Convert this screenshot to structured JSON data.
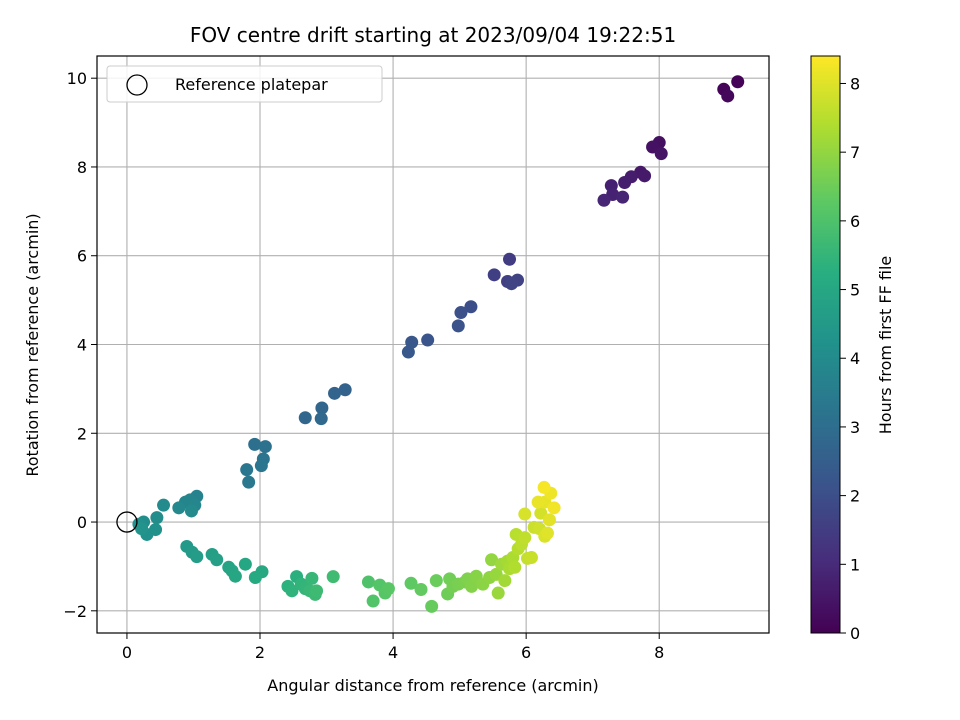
{
  "chart_data": {
    "type": "scatter",
    "title": "FOV centre drift starting at 2023/09/04 19:22:51",
    "xlabel": "Angular distance from reference (arcmin)",
    "ylabel": "Rotation from reference (arcmin)",
    "xlim": [
      -0.45,
      9.65
    ],
    "ylim": [
      -2.5,
      10.5
    ],
    "xticks": [
      0,
      2,
      4,
      6,
      8
    ],
    "yticks": [
      -2,
      0,
      2,
      4,
      6,
      8,
      10
    ],
    "grid": true,
    "legend": {
      "placement": "upper-left",
      "entries": [
        "Reference platepar"
      ]
    },
    "reference_point": {
      "x": 0,
      "y": 0
    },
    "colorbar": {
      "label": "Hours from first FF file",
      "colormap": "viridis",
      "range": [
        0,
        8.4
      ],
      "ticks": [
        0,
        1,
        2,
        3,
        4,
        5,
        6,
        7,
        8
      ]
    },
    "points": [
      {
        "x": 9.18,
        "y": 9.92,
        "c": 0.05
      },
      {
        "x": 8.97,
        "y": 9.75,
        "c": 0.1
      },
      {
        "x": 9.03,
        "y": 9.6,
        "c": 0.15
      },
      {
        "x": 8.0,
        "y": 8.55,
        "c": 0.35
      },
      {
        "x": 7.9,
        "y": 8.45,
        "c": 0.4
      },
      {
        "x": 8.03,
        "y": 8.3,
        "c": 0.45
      },
      {
        "x": 7.72,
        "y": 7.88,
        "c": 0.55
      },
      {
        "x": 7.78,
        "y": 7.8,
        "c": 0.6
      },
      {
        "x": 7.58,
        "y": 7.78,
        "c": 0.65
      },
      {
        "x": 7.48,
        "y": 7.65,
        "c": 0.7
      },
      {
        "x": 7.28,
        "y": 7.58,
        "c": 0.75
      },
      {
        "x": 7.3,
        "y": 7.38,
        "c": 0.8
      },
      {
        "x": 7.45,
        "y": 7.32,
        "c": 0.85
      },
      {
        "x": 7.17,
        "y": 7.25,
        "c": 0.9
      },
      {
        "x": 5.75,
        "y": 5.92,
        "c": 1.5
      },
      {
        "x": 5.52,
        "y": 5.57,
        "c": 1.55
      },
      {
        "x": 5.72,
        "y": 5.42,
        "c": 1.6
      },
      {
        "x": 5.87,
        "y": 5.45,
        "c": 1.65
      },
      {
        "x": 5.78,
        "y": 5.37,
        "c": 1.7
      },
      {
        "x": 5.17,
        "y": 4.85,
        "c": 2.0
      },
      {
        "x": 5.02,
        "y": 4.72,
        "c": 2.05
      },
      {
        "x": 4.98,
        "y": 4.42,
        "c": 2.1
      },
      {
        "x": 4.52,
        "y": 4.1,
        "c": 2.2
      },
      {
        "x": 4.28,
        "y": 4.05,
        "c": 2.25
      },
      {
        "x": 4.23,
        "y": 3.83,
        "c": 2.3
      },
      {
        "x": 3.28,
        "y": 2.98,
        "c": 2.65
      },
      {
        "x": 3.12,
        "y": 2.9,
        "c": 2.7
      },
      {
        "x": 2.93,
        "y": 2.57,
        "c": 2.75
      },
      {
        "x": 2.68,
        "y": 2.35,
        "c": 2.8
      },
      {
        "x": 2.92,
        "y": 2.33,
        "c": 2.85
      },
      {
        "x": 1.92,
        "y": 1.75,
        "c": 3.1
      },
      {
        "x": 2.08,
        "y": 1.7,
        "c": 3.15
      },
      {
        "x": 2.05,
        "y": 1.42,
        "c": 3.2
      },
      {
        "x": 2.02,
        "y": 1.27,
        "c": 3.25
      },
      {
        "x": 1.8,
        "y": 1.18,
        "c": 3.3
      },
      {
        "x": 1.83,
        "y": 0.9,
        "c": 3.35
      },
      {
        "x": 1.05,
        "y": 0.58,
        "c": 3.7
      },
      {
        "x": 0.95,
        "y": 0.5,
        "c": 3.75
      },
      {
        "x": 0.88,
        "y": 0.45,
        "c": 3.8
      },
      {
        "x": 1.02,
        "y": 0.38,
        "c": 3.85
      },
      {
        "x": 0.78,
        "y": 0.32,
        "c": 3.9
      },
      {
        "x": 0.97,
        "y": 0.25,
        "c": 3.95
      },
      {
        "x": 0.55,
        "y": 0.38,
        "c": 4.0
      },
      {
        "x": 0.45,
        "y": 0.1,
        "c": 4.05
      },
      {
        "x": 0.25,
        "y": 0.0,
        "c": 4.1
      },
      {
        "x": 0.18,
        "y": -0.05,
        "c": 4.15
      },
      {
        "x": 0.43,
        "y": -0.17,
        "c": 4.2
      },
      {
        "x": 0.3,
        "y": -0.28,
        "c": 4.25
      },
      {
        "x": 0.22,
        "y": -0.15,
        "c": 4.3
      },
      {
        "x": 0.9,
        "y": -0.55,
        "c": 4.5
      },
      {
        "x": 0.98,
        "y": -0.68,
        "c": 4.55
      },
      {
        "x": 1.05,
        "y": -0.78,
        "c": 4.6
      },
      {
        "x": 1.28,
        "y": -0.73,
        "c": 4.7
      },
      {
        "x": 1.35,
        "y": -0.85,
        "c": 4.75
      },
      {
        "x": 1.53,
        "y": -1.02,
        "c": 4.85
      },
      {
        "x": 1.58,
        "y": -1.1,
        "c": 4.9
      },
      {
        "x": 1.63,
        "y": -1.22,
        "c": 4.95
      },
      {
        "x": 1.78,
        "y": -0.95,
        "c": 5.0
      },
      {
        "x": 2.03,
        "y": -1.12,
        "c": 5.05
      },
      {
        "x": 1.93,
        "y": -1.25,
        "c": 5.1
      },
      {
        "x": 2.55,
        "y": -1.23,
        "c": 5.3
      },
      {
        "x": 2.42,
        "y": -1.45,
        "c": 5.35
      },
      {
        "x": 2.48,
        "y": -1.55,
        "c": 5.4
      },
      {
        "x": 2.62,
        "y": -1.4,
        "c": 5.45
      },
      {
        "x": 2.68,
        "y": -1.5,
        "c": 5.5
      },
      {
        "x": 2.78,
        "y": -1.27,
        "c": 5.55
      },
      {
        "x": 2.75,
        "y": -1.55,
        "c": 5.6
      },
      {
        "x": 2.83,
        "y": -1.63,
        "c": 5.65
      },
      {
        "x": 2.85,
        "y": -1.55,
        "c": 5.7
      },
      {
        "x": 3.1,
        "y": -1.23,
        "c": 5.75
      },
      {
        "x": 3.63,
        "y": -1.35,
        "c": 6.0
      },
      {
        "x": 3.7,
        "y": -1.78,
        "c": 6.05
      },
      {
        "x": 3.8,
        "y": -1.42,
        "c": 6.1
      },
      {
        "x": 3.88,
        "y": -1.6,
        "c": 6.15
      },
      {
        "x": 3.93,
        "y": -1.5,
        "c": 6.2
      },
      {
        "x": 4.27,
        "y": -1.38,
        "c": 6.3
      },
      {
        "x": 4.42,
        "y": -1.52,
        "c": 6.35
      },
      {
        "x": 4.58,
        "y": -1.9,
        "c": 6.4
      },
      {
        "x": 4.65,
        "y": -1.32,
        "c": 6.45
      },
      {
        "x": 4.82,
        "y": -1.62,
        "c": 6.5
      },
      {
        "x": 4.85,
        "y": -1.28,
        "c": 6.55
      },
      {
        "x": 4.9,
        "y": -1.45,
        "c": 6.6
      },
      {
        "x": 4.98,
        "y": -1.4,
        "c": 6.65
      },
      {
        "x": 5.08,
        "y": -1.35,
        "c": 6.7
      },
      {
        "x": 5.12,
        "y": -1.28,
        "c": 6.75
      },
      {
        "x": 5.18,
        "y": -1.45,
        "c": 6.8
      },
      {
        "x": 5.25,
        "y": -1.22,
        "c": 6.85
      },
      {
        "x": 5.35,
        "y": -1.4,
        "c": 6.9
      },
      {
        "x": 5.45,
        "y": -1.25,
        "c": 6.95
      },
      {
        "x": 5.48,
        "y": -0.85,
        "c": 7.0
      },
      {
        "x": 5.55,
        "y": -1.18,
        "c": 7.05
      },
      {
        "x": 5.58,
        "y": -1.6,
        "c": 7.1
      },
      {
        "x": 5.63,
        "y": -0.95,
        "c": 7.15
      },
      {
        "x": 5.68,
        "y": -1.32,
        "c": 7.2
      },
      {
        "x": 5.72,
        "y": -0.88,
        "c": 7.25
      },
      {
        "x": 5.75,
        "y": -1.05,
        "c": 7.3
      },
      {
        "x": 5.8,
        "y": -0.8,
        "c": 7.35
      },
      {
        "x": 5.83,
        "y": -1.02,
        "c": 7.4
      },
      {
        "x": 5.88,
        "y": -0.6,
        "c": 7.45
      },
      {
        "x": 5.85,
        "y": -0.28,
        "c": 7.5
      },
      {
        "x": 5.93,
        "y": -0.5,
        "c": 7.55
      },
      {
        "x": 5.98,
        "y": -0.35,
        "c": 7.6
      },
      {
        "x": 6.02,
        "y": -0.82,
        "c": 7.65
      },
      {
        "x": 6.08,
        "y": -0.8,
        "c": 7.7
      },
      {
        "x": 6.12,
        "y": -0.12,
        "c": 7.75
      },
      {
        "x": 6.2,
        "y": -0.15,
        "c": 7.8
      },
      {
        "x": 6.22,
        "y": 0.2,
        "c": 7.85
      },
      {
        "x": 5.98,
        "y": 0.18,
        "c": 7.9
      },
      {
        "x": 6.28,
        "y": -0.32,
        "c": 7.95
      },
      {
        "x": 6.32,
        "y": -0.25,
        "c": 8.0
      },
      {
        "x": 6.35,
        "y": 0.05,
        "c": 8.05
      },
      {
        "x": 6.28,
        "y": 0.45,
        "c": 8.1
      },
      {
        "x": 6.18,
        "y": 0.45,
        "c": 8.15
      },
      {
        "x": 6.37,
        "y": 0.65,
        "c": 8.2
      },
      {
        "x": 6.42,
        "y": 0.32,
        "c": 8.25
      },
      {
        "x": 6.27,
        "y": 0.78,
        "c": 8.3
      }
    ]
  }
}
